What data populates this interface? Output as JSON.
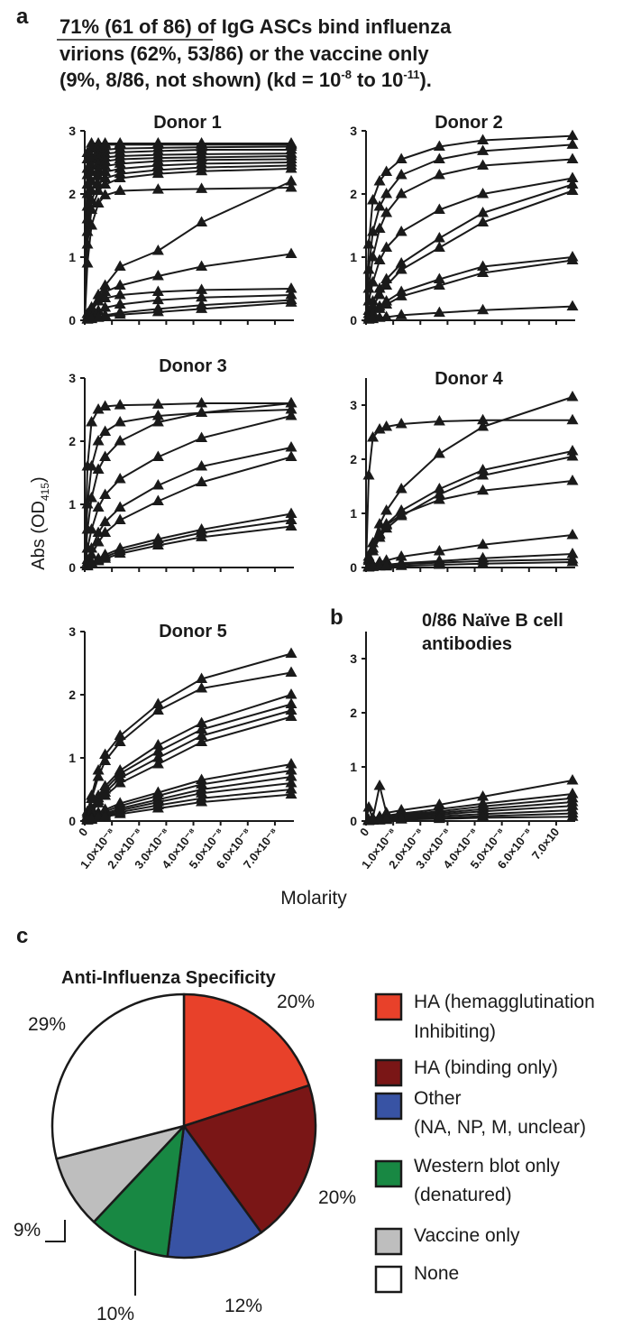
{
  "panel_a": {
    "letter": "a",
    "header_line1": "71% (61 of 86) of IgG ASCs bind influenza",
    "header_line2": "virions (62%, 53/86) or the vaccine only",
    "header_line3_pre": "(9%, 8/86, not shown) (kd = 10",
    "header_line3_exp1": "-8",
    "header_line3_mid": " to 10",
    "header_line3_exp2": "-11",
    "header_line3_post": ")."
  },
  "panel_b": {
    "letter": "b"
  },
  "panel_c": {
    "letter": "c"
  },
  "y_axis_label_main": "Abs (OD",
  "y_axis_label_sub": "415",
  "y_axis_label_close": ")",
  "x_axis_label": "Molarity",
  "x_ticks_a": [
    "0",
    "1.0×10⁻⁸",
    "2.0×10⁻⁸",
    "3.0×10⁻⁸",
    "4.0×10⁻⁸",
    "5.0×10⁻⁸",
    "6.0×10⁻⁸",
    "7.0×10⁻⁸"
  ],
  "x_ticks_b": [
    "0",
    "1.0×10⁻⁸",
    "2.0×10⁻⁸",
    "3.0×10⁻⁸",
    "4.0×10⁻⁸",
    "5.0×10⁻⁸",
    "6.0×10⁻⁸",
    "7.0×10"
  ],
  "colors": {
    "ink": "#1a1a1a",
    "ha_hi": "#e8412a",
    "ha_binding": "#7a1616",
    "other": "#3853a4",
    "western": "#188843",
    "vaccine": "#bebebe",
    "none": "#ffffff"
  },
  "chart_data": [
    {
      "type": "line",
      "title": "Donor 1",
      "ylim": [
        0,
        3
      ],
      "xlim": [
        0,
        7.5e-08
      ],
      "yticks": [
        "0",
        "1",
        "2",
        "3"
      ],
      "x_points": [
        0,
        1e-09,
        2.5e-09,
        5e-09,
        7.5e-09,
        1.3e-08,
        2.7e-08,
        4.3e-08,
        7.6e-08
      ],
      "series": [
        {
          "values": [
            0.0,
            2.65,
            2.8,
            2.8,
            2.8,
            2.8,
            2.8,
            2.8,
            2.8
          ]
        },
        {
          "values": [
            0.0,
            2.55,
            2.72,
            2.76,
            2.78,
            2.78,
            2.78,
            2.78,
            2.78
          ]
        },
        {
          "values": [
            0.0,
            2.4,
            2.6,
            2.68,
            2.7,
            2.72,
            2.73,
            2.74,
            2.75
          ]
        },
        {
          "values": [
            0.0,
            2.3,
            2.55,
            2.62,
            2.64,
            2.66,
            2.68,
            2.7,
            2.7
          ]
        },
        {
          "values": [
            0.0,
            2.15,
            2.45,
            2.55,
            2.58,
            2.6,
            2.62,
            2.63,
            2.64
          ]
        },
        {
          "values": [
            0.0,
            2.0,
            2.35,
            2.48,
            2.52,
            2.55,
            2.57,
            2.58,
            2.6
          ]
        },
        {
          "values": [
            0.0,
            1.8,
            2.2,
            2.38,
            2.44,
            2.48,
            2.52,
            2.54,
            2.55
          ]
        },
        {
          "values": [
            0.0,
            1.6,
            2.05,
            2.28,
            2.35,
            2.4,
            2.45,
            2.48,
            2.5
          ]
        },
        {
          "values": [
            0.0,
            1.4,
            1.9,
            2.15,
            2.25,
            2.32,
            2.38,
            2.42,
            2.45
          ]
        },
        {
          "values": [
            0.0,
            1.2,
            1.75,
            2.05,
            2.15,
            2.25,
            2.32,
            2.36,
            2.4
          ]
        },
        {
          "values": [
            0.0,
            0.9,
            1.5,
            1.85,
            1.98,
            2.05,
            2.07,
            2.08,
            2.1
          ]
        },
        {
          "values": [
            0.0,
            0.1,
            0.2,
            0.4,
            0.55,
            0.85,
            1.1,
            1.55,
            2.2
          ]
        },
        {
          "values": [
            0.0,
            0.05,
            0.15,
            0.3,
            0.45,
            0.55,
            0.7,
            0.85,
            1.05
          ]
        },
        {
          "values": [
            0.0,
            0.1,
            0.2,
            0.3,
            0.35,
            0.4,
            0.45,
            0.48,
            0.5
          ]
        },
        {
          "values": [
            0.0,
            0.05,
            0.1,
            0.15,
            0.2,
            0.25,
            0.32,
            0.36,
            0.4
          ]
        },
        {
          "values": [
            0.0,
            0.02,
            0.04,
            0.06,
            0.08,
            0.12,
            0.18,
            0.24,
            0.32
          ]
        },
        {
          "values": [
            0.0,
            0.01,
            0.02,
            0.04,
            0.06,
            0.09,
            0.13,
            0.18,
            0.28
          ]
        }
      ]
    },
    {
      "type": "line",
      "title": "Donor 2",
      "ylim": [
        0,
        3
      ],
      "xlim": [
        0,
        7.5e-08
      ],
      "yticks": [
        "0",
        "1",
        "2",
        "3"
      ],
      "x_points": [
        0,
        1e-09,
        2.5e-09,
        5e-09,
        7.5e-09,
        1.3e-08,
        2.7e-08,
        4.3e-08,
        7.6e-08
      ],
      "series": [
        {
          "values": [
            0.0,
            1.2,
            1.9,
            2.2,
            2.35,
            2.55,
            2.75,
            2.85,
            2.92
          ]
        },
        {
          "values": [
            0.0,
            0.8,
            1.4,
            1.8,
            2.0,
            2.3,
            2.55,
            2.68,
            2.78
          ]
        },
        {
          "values": [
            0.0,
            0.5,
            1.0,
            1.45,
            1.7,
            2.0,
            2.3,
            2.45,
            2.55
          ]
        },
        {
          "values": [
            0.0,
            0.3,
            0.6,
            0.95,
            1.15,
            1.4,
            1.75,
            2.0,
            2.25
          ]
        },
        {
          "values": [
            0.0,
            0.15,
            0.3,
            0.5,
            0.65,
            0.9,
            1.3,
            1.7,
            2.15
          ]
        },
        {
          "values": [
            0.0,
            0.1,
            0.22,
            0.4,
            0.55,
            0.8,
            1.15,
            1.55,
            2.05
          ]
        },
        {
          "values": [
            0.0,
            0.05,
            0.12,
            0.22,
            0.3,
            0.45,
            0.65,
            0.85,
            1.0
          ]
        },
        {
          "values": [
            0.0,
            0.04,
            0.1,
            0.18,
            0.25,
            0.38,
            0.55,
            0.75,
            0.95
          ]
        },
        {
          "values": [
            0.0,
            0.01,
            0.02,
            0.04,
            0.05,
            0.08,
            0.12,
            0.16,
            0.22
          ]
        }
      ]
    },
    {
      "type": "line",
      "title": "Donor 3",
      "ylim": [
        0,
        3
      ],
      "xlim": [
        0,
        7.5e-08
      ],
      "yticks": [
        "0",
        "1",
        "2",
        "3"
      ],
      "x_points": [
        0,
        1e-09,
        2.5e-09,
        5e-09,
        7.5e-09,
        1.3e-08,
        2.7e-08,
        4.3e-08,
        7.6e-08
      ],
      "series": [
        {
          "values": [
            0.0,
            1.6,
            2.3,
            2.5,
            2.55,
            2.57,
            2.58,
            2.6,
            2.6
          ]
        },
        {
          "values": [
            0.0,
            1.0,
            1.6,
            2.0,
            2.15,
            2.3,
            2.4,
            2.45,
            2.5
          ]
        },
        {
          "values": [
            0.0,
            0.6,
            1.1,
            1.55,
            1.75,
            2.0,
            2.3,
            2.45,
            2.6
          ]
        },
        {
          "values": [
            0.0,
            0.3,
            0.6,
            0.95,
            1.15,
            1.4,
            1.75,
            2.05,
            2.4
          ]
        },
        {
          "values": [
            0.0,
            0.12,
            0.3,
            0.55,
            0.72,
            0.95,
            1.3,
            1.6,
            1.9
          ]
        },
        {
          "values": [
            0.0,
            0.08,
            0.2,
            0.4,
            0.55,
            0.75,
            1.05,
            1.35,
            1.75
          ]
        },
        {
          "values": [
            0.0,
            0.03,
            0.08,
            0.14,
            0.2,
            0.3,
            0.45,
            0.6,
            0.85
          ]
        },
        {
          "values": [
            0.0,
            0.03,
            0.07,
            0.12,
            0.17,
            0.26,
            0.4,
            0.55,
            0.75
          ]
        },
        {
          "values": [
            0.0,
            0.02,
            0.05,
            0.1,
            0.14,
            0.22,
            0.35,
            0.48,
            0.65
          ]
        }
      ]
    },
    {
      "type": "line",
      "title": "Donor 4",
      "ylim": [
        0,
        3.5
      ],
      "xlim": [
        0,
        7.5e-08
      ],
      "yticks": [
        "0",
        "1",
        "2",
        "3"
      ],
      "x_points": [
        0,
        1e-09,
        2.5e-09,
        5e-09,
        7.5e-09,
        1.3e-08,
        2.7e-08,
        4.3e-08,
        7.6e-08
      ],
      "series": [
        {
          "values": [
            0.0,
            1.7,
            2.4,
            2.55,
            2.6,
            2.65,
            2.7,
            2.72,
            2.72
          ]
        },
        {
          "values": [
            0.0,
            0.2,
            0.45,
            0.8,
            1.05,
            1.45,
            2.1,
            2.6,
            3.15
          ]
        },
        {
          "values": [
            0.0,
            0.15,
            0.35,
            0.62,
            0.8,
            1.05,
            1.45,
            1.8,
            2.15
          ]
        },
        {
          "values": [
            0.0,
            0.12,
            0.3,
            0.55,
            0.72,
            0.95,
            1.35,
            1.7,
            2.05
          ]
        },
        {
          "values": [
            0.0,
            0.15,
            0.35,
            0.6,
            0.78,
            0.98,
            1.25,
            1.42,
            1.6
          ]
        },
        {
          "values": [
            0.0,
            0.02,
            0.05,
            0.1,
            0.13,
            0.2,
            0.3,
            0.42,
            0.6
          ]
        },
        {
          "values": [
            0.0,
            0.01,
            0.02,
            0.04,
            0.05,
            0.08,
            0.12,
            0.17,
            0.25
          ]
        },
        {
          "values": [
            0.0,
            0.01,
            0.02,
            0.03,
            0.04,
            0.06,
            0.09,
            0.12,
            0.15
          ]
        },
        {
          "values": [
            0.0,
            0.0,
            0.01,
            0.02,
            0.02,
            0.03,
            0.05,
            0.07,
            0.1
          ]
        }
      ]
    },
    {
      "type": "line",
      "title": "Donor 5",
      "ylim": [
        0,
        3
      ],
      "xlim": [
        0,
        7.5e-08
      ],
      "yticks": [
        "0",
        "1",
        "2",
        "3"
      ],
      "x_points": [
        0,
        1e-09,
        2.5e-09,
        5e-09,
        7.5e-09,
        1.3e-08,
        2.7e-08,
        4.3e-08,
        7.6e-08
      ],
      "series": [
        {
          "values": [
            0.0,
            0.15,
            0.4,
            0.8,
            1.05,
            1.35,
            1.85,
            2.25,
            2.65
          ]
        },
        {
          "values": [
            0.0,
            0.12,
            0.35,
            0.7,
            0.95,
            1.25,
            1.75,
            2.1,
            2.35
          ]
        },
        {
          "values": [
            0.0,
            0.08,
            0.2,
            0.4,
            0.55,
            0.8,
            1.2,
            1.55,
            2.0
          ]
        },
        {
          "values": [
            0.0,
            0.07,
            0.18,
            0.36,
            0.5,
            0.75,
            1.1,
            1.45,
            1.85
          ]
        },
        {
          "values": [
            0.0,
            0.06,
            0.16,
            0.32,
            0.45,
            0.68,
            1.0,
            1.35,
            1.75
          ]
        },
        {
          "values": [
            0.0,
            0.05,
            0.14,
            0.28,
            0.4,
            0.6,
            0.9,
            1.25,
            1.65
          ]
        },
        {
          "values": [
            0.0,
            0.03,
            0.07,
            0.13,
            0.18,
            0.28,
            0.45,
            0.65,
            0.9
          ]
        },
        {
          "values": [
            0.0,
            0.02,
            0.06,
            0.11,
            0.15,
            0.24,
            0.4,
            0.58,
            0.8
          ]
        },
        {
          "values": [
            0.0,
            0.02,
            0.05,
            0.09,
            0.12,
            0.2,
            0.34,
            0.5,
            0.7
          ]
        },
        {
          "values": [
            0.0,
            0.02,
            0.04,
            0.08,
            0.1,
            0.17,
            0.3,
            0.44,
            0.6
          ]
        },
        {
          "values": [
            0.0,
            0.01,
            0.03,
            0.06,
            0.08,
            0.14,
            0.25,
            0.36,
            0.5
          ]
        },
        {
          "values": [
            0.0,
            0.01,
            0.02,
            0.05,
            0.07,
            0.11,
            0.2,
            0.3,
            0.42
          ]
        }
      ]
    },
    {
      "type": "line",
      "title": "0/86 Naïve B cell antibodies",
      "title_line1": "0/86 Naïve B cell",
      "title_line2": "antibodies",
      "ylim": [
        0,
        3.5
      ],
      "xlim": [
        0,
        7.5e-08
      ],
      "yticks": [
        "0",
        "1",
        "2",
        "3"
      ],
      "x_points": [
        0,
        1e-09,
        2.5e-09,
        5e-09,
        7.5e-09,
        1.3e-08,
        2.7e-08,
        4.3e-08,
        7.6e-08
      ],
      "series": [
        {
          "values": [
            0.0,
            0.02,
            0.05,
            0.65,
            0.15,
            0.2,
            0.3,
            0.45,
            0.75
          ]
        },
        {
          "values": [
            0.0,
            0.25,
            0.05,
            0.08,
            0.1,
            0.14,
            0.22,
            0.32,
            0.5
          ]
        },
        {
          "values": [
            0.0,
            0.02,
            0.04,
            0.07,
            0.09,
            0.12,
            0.18,
            0.27,
            0.42
          ]
        },
        {
          "values": [
            0.0,
            0.02,
            0.03,
            0.05,
            0.07,
            0.1,
            0.15,
            0.22,
            0.35
          ]
        },
        {
          "values": [
            0.0,
            0.01,
            0.02,
            0.04,
            0.05,
            0.08,
            0.12,
            0.18,
            0.28
          ]
        },
        {
          "values": [
            0.0,
            0.01,
            0.02,
            0.03,
            0.04,
            0.06,
            0.09,
            0.13,
            0.2
          ]
        },
        {
          "values": [
            0.0,
            0.01,
            0.01,
            0.02,
            0.03,
            0.04,
            0.06,
            0.09,
            0.14
          ]
        },
        {
          "values": [
            0.0,
            0.0,
            0.01,
            0.01,
            0.02,
            0.03,
            0.04,
            0.06,
            0.08
          ]
        }
      ]
    },
    {
      "type": "pie",
      "title": "Anti-Influenza Specificity",
      "slices": [
        {
          "label_line1": "HA (hemagglutination",
          "label_line2": "Inhibiting)",
          "value": 20,
          "value_label": "20%",
          "color": "#e8412a"
        },
        {
          "label_line1": "HA (binding only)",
          "label_line2": "",
          "value": 20,
          "value_label": "20%",
          "color": "#7a1616"
        },
        {
          "label_line1": "Other",
          "label_line2": "(NA, NP, M, unclear)",
          "value": 12,
          "value_label": "12%",
          "color": "#3853a4"
        },
        {
          "label_line1": "Western blot only",
          "label_line2": "(denatured)",
          "value": 10,
          "value_label": "10%",
          "color": "#188843"
        },
        {
          "label_line1": "Vaccine only",
          "label_line2": "",
          "value": 9,
          "value_label": "9%",
          "color": "#bebebe"
        },
        {
          "label_line1": "None",
          "label_line2": "",
          "value": 29,
          "value_label": "29%",
          "color": "#ffffff"
        }
      ]
    }
  ]
}
